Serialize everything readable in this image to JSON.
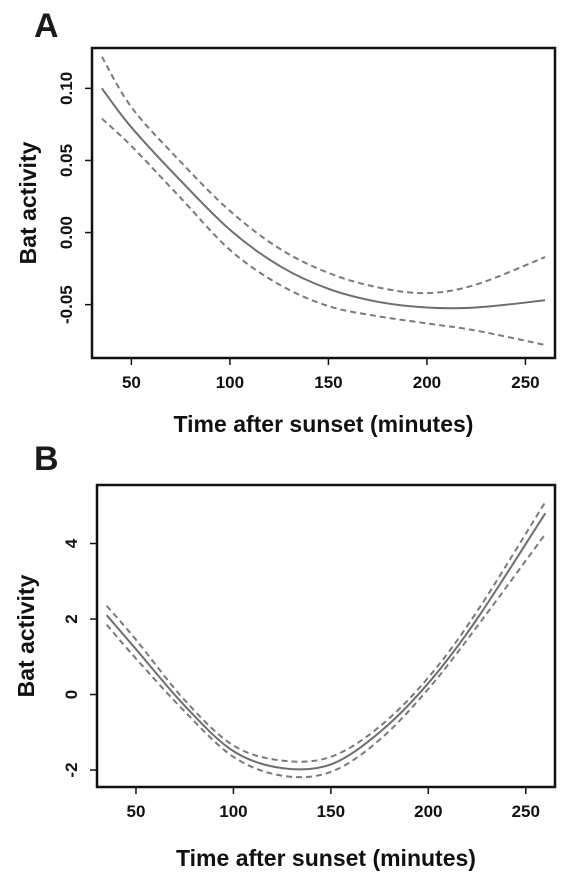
{
  "chart_data": [
    {
      "panel": "A",
      "type": "line",
      "xlabel": "Time after sunset (minutes)",
      "ylabel": "Bat activity",
      "xlim": [
        30,
        265
      ],
      "ylim": [
        -0.087,
        0.128
      ],
      "xticks": [
        50,
        100,
        150,
        200,
        250
      ],
      "yticks": [
        0.1,
        0.05,
        0.0,
        -0.05
      ],
      "ytick_labels": [
        "0.10",
        "0.05",
        "0.00",
        "-0.05"
      ],
      "series": [
        {
          "style": "solid",
          "x": [
            35,
            50,
            75,
            100,
            125,
            150,
            175,
            200,
            225,
            260
          ],
          "values": [
            0.1,
            0.073,
            0.036,
            0.002,
            -0.023,
            -0.039,
            -0.048,
            -0.052,
            -0.052,
            -0.047
          ]
        },
        {
          "style": "dashed",
          "x": [
            35,
            50,
            75,
            100,
            125,
            150,
            175,
            200,
            225,
            260
          ],
          "values": [
            0.122,
            0.087,
            0.049,
            0.015,
            -0.011,
            -0.028,
            -0.038,
            -0.042,
            -0.036,
            -0.017
          ]
        },
        {
          "style": "dashed",
          "x": [
            35,
            50,
            75,
            100,
            125,
            150,
            175,
            200,
            225,
            260
          ],
          "values": [
            0.079,
            0.06,
            0.024,
            -0.012,
            -0.036,
            -0.051,
            -0.058,
            -0.063,
            -0.068,
            -0.078
          ]
        }
      ]
    },
    {
      "panel": "B",
      "type": "line",
      "xlabel": "Time after sunset (minutes)",
      "ylabel": "Bat activity",
      "xlim": [
        30,
        265
      ],
      "ylim": [
        -2.45,
        5.55
      ],
      "xticks": [
        50,
        100,
        150,
        200,
        250
      ],
      "yticks": [
        4,
        2,
        0,
        -2
      ],
      "ytick_labels": [
        "4",
        "2",
        "0",
        "-2"
      ],
      "series": [
        {
          "style": "solid",
          "x": [
            35,
            50,
            75,
            100,
            125,
            150,
            175,
            200,
            225,
            260
          ],
          "values": [
            2.1,
            1.2,
            -0.3,
            -1.5,
            -1.95,
            -1.85,
            -1.0,
            0.3,
            2.0,
            4.8
          ]
        },
        {
          "style": "dashed",
          "x": [
            35,
            50,
            75,
            100,
            125,
            150,
            175,
            200,
            225,
            260
          ],
          "values": [
            2.35,
            1.45,
            -0.15,
            -1.35,
            -1.75,
            -1.65,
            -0.85,
            0.45,
            2.2,
            5.1
          ]
        },
        {
          "style": "dashed",
          "x": [
            35,
            50,
            75,
            100,
            125,
            150,
            175,
            200,
            225,
            260
          ],
          "values": [
            1.85,
            0.95,
            -0.45,
            -1.65,
            -2.15,
            -2.05,
            -1.2,
            0.15,
            1.8,
            4.25
          ]
        }
      ]
    }
  ]
}
